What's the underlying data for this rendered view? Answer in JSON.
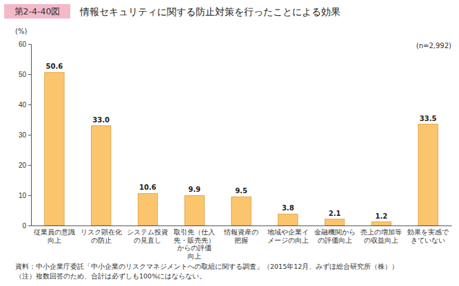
{
  "chart_data": {
    "type": "bar",
    "figure_label": "第2-4-40図",
    "title": "情報セキュリティに関する防止対策を行ったことによる効果",
    "ylabel": "(%)",
    "categories": [
      "従業員の意識\n向上",
      "リスク顕在化\nの防止",
      "システム投資\nの見直し",
      "取引先（仕入\n先・販売先）\nからの評価\n向上",
      "情報資産の\n把握",
      "地域や企業イ\nメージの向上",
      "金融機関から\nの評価向上",
      "売上の増加等\nの収益向上",
      "効果を実感で\nきていない"
    ],
    "values": [
      50.6,
      33.0,
      10.6,
      9.9,
      9.5,
      3.8,
      2.1,
      1.2,
      33.5
    ],
    "value_labels": [
      "50.6",
      "33.0",
      "10.6",
      "9.9",
      "9.5",
      "3.8",
      "2.1",
      "1.2",
      "33.5"
    ],
    "data_labels": true,
    "color": "#fbc56e",
    "ylim": [
      0,
      60
    ],
    "yticks": [
      0,
      10,
      20,
      30,
      40,
      50,
      60
    ],
    "grid": false,
    "annotations": [
      "(n=2,992)",
      "資料：中小企業庁委託「中小企業のリスクマネジメントへの取組に関する調査」（2015年12月、みずほ総合研究所（株））",
      "（注）複数回答のため、合計は必ずしも100%にはならない。"
    ]
  }
}
